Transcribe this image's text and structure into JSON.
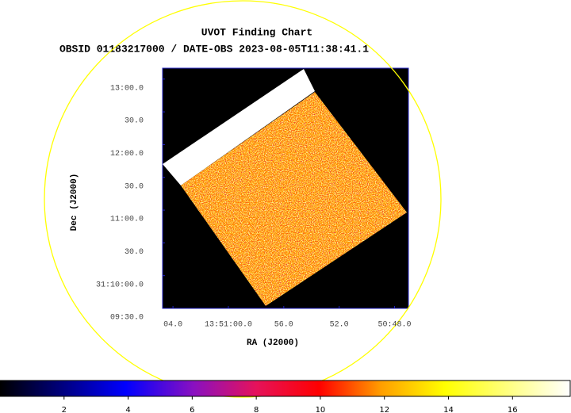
{
  "chart_data": {
    "type": "image",
    "title": "UVOT Finding Chart",
    "subtitle": "OBSID 01183217000 / DATE-OBS 2023-08-05T11:38:41.1",
    "x_label": "RA (J2000)",
    "y_label": "Dec (J2000)",
    "xlim": [
      4.75,
      -13
    ],
    "xticks": [
      {
        "value": 4,
        "label": "04.0"
      },
      {
        "value": 0,
        "label": "13:51:00.0"
      },
      {
        "value": -4,
        "label": "56.0"
      },
      {
        "value": -8,
        "label": "52.0"
      },
      {
        "value": -12,
        "label": "50:48.0"
      }
    ],
    "ylim": [
      570,
      790
    ],
    "yticks": [
      {
        "value": 570,
        "label": "09:30.0"
      },
      {
        "value": 600,
        "label": "31:10:00.0"
      },
      {
        "value": 630,
        "label": "30.0"
      },
      {
        "value": 660,
        "label": "11:00.0"
      },
      {
        "value": 690,
        "label": "30.0"
      },
      {
        "value": 720,
        "label": "12:00.0"
      },
      {
        "value": 750,
        "label": "30.0"
      },
      {
        "value": 780,
        "label": "13:00.0"
      }
    ],
    "colorbar_lim": [
      0,
      17.8
    ],
    "colorbar_ticks": [
      2,
      4,
      6,
      8,
      10,
      12,
      14,
      16
    ],
    "circle_color": "#ffff00"
  }
}
